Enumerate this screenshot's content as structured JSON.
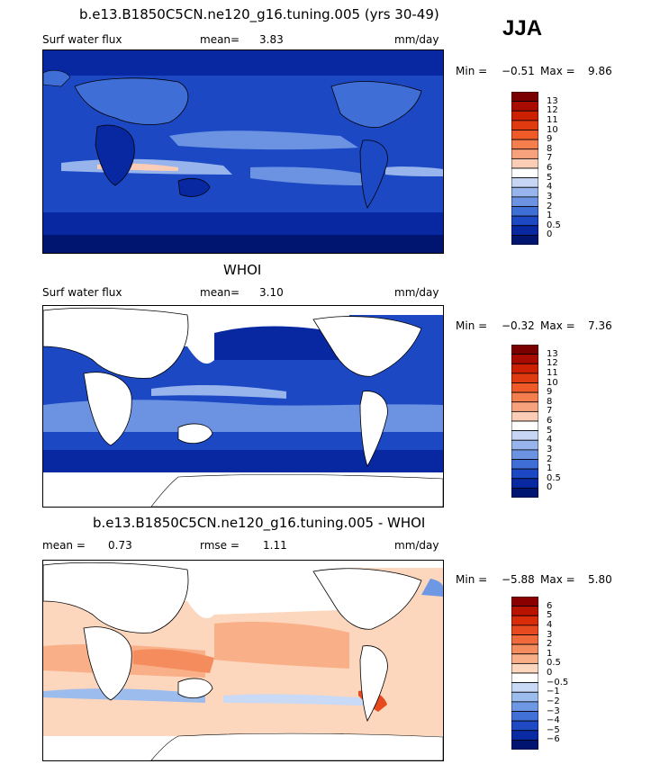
{
  "season": "JJA",
  "panels": [
    {
      "title": "b.e13.B1850C5CN.ne120_g16.tuning.005 (yrs 30-49)",
      "left_label": "Surf water flux",
      "stat_label": "mean=",
      "stat_value": "3.83",
      "units": "mm/day",
      "min_label": "Min =",
      "min_value": "−0.51",
      "max_label": "Max =",
      "max_value": "9.86",
      "colorbar": {
        "levels": [
          "13",
          "12",
          "11",
          "10",
          "9",
          "8",
          "7",
          "6",
          "5",
          "4",
          "3",
          "2",
          "1",
          "0.5",
          "0"
        ],
        "colors": [
          "#7a0000",
          "#a80c00",
          "#cc2000",
          "#e03a10",
          "#ef5a28",
          "#f57e4f",
          "#f7a27d",
          "#fbcdb6",
          "#ffffff",
          "#c6d6f4",
          "#97b5ec",
          "#6b93e2",
          "#3f6fd6",
          "#1c48c4",
          "#0828a2",
          "#001570"
        ]
      }
    },
    {
      "title": "WHOI",
      "left_label": "Surf water flux",
      "stat_label": "mean=",
      "stat_value": "3.10",
      "units": "mm/day",
      "min_label": "Min =",
      "min_value": "−0.32",
      "max_label": "Max =",
      "max_value": "7.36",
      "colorbar": {
        "levels": [
          "13",
          "12",
          "11",
          "10",
          "9",
          "8",
          "7",
          "6",
          "5",
          "4",
          "3",
          "2",
          "1",
          "0.5",
          "0"
        ],
        "colors": [
          "#7a0000",
          "#a80c00",
          "#cc2000",
          "#e03a10",
          "#ef5a28",
          "#f57e4f",
          "#f7a27d",
          "#fbcdb6",
          "#ffffff",
          "#c6d6f4",
          "#97b5ec",
          "#6b93e2",
          "#3f6fd6",
          "#1c48c4",
          "#0828a2",
          "#001570"
        ]
      }
    },
    {
      "title": "b.e13.B1850C5CN.ne120_g16.tuning.005 - WHOI",
      "left_label": "mean =",
      "left_value": "0.73",
      "stat_label": "rmse =",
      "stat_value": "1.11",
      "units": "mm/day",
      "min_label": "Min =",
      "min_value": "−5.88",
      "max_label": "Max =",
      "max_value": "5.80",
      "colorbar": {
        "levels": [
          "6",
          "5",
          "4",
          "3",
          "2",
          "1",
          "0.5",
          "0",
          "−0.5",
          "−1",
          "−2",
          "−3",
          "−4",
          "−5",
          "−6"
        ],
        "colors": [
          "#8a0000",
          "#b81400",
          "#d92c08",
          "#e84a20",
          "#f06a3c",
          "#f58c5e",
          "#f9b089",
          "#fcd6bd",
          "#ffffff",
          "#c9daf6",
          "#9cbcee",
          "#6f98e4",
          "#4170d6",
          "#1f4ac4",
          "#0a2aa4",
          "#001470"
        ]
      }
    }
  ]
}
